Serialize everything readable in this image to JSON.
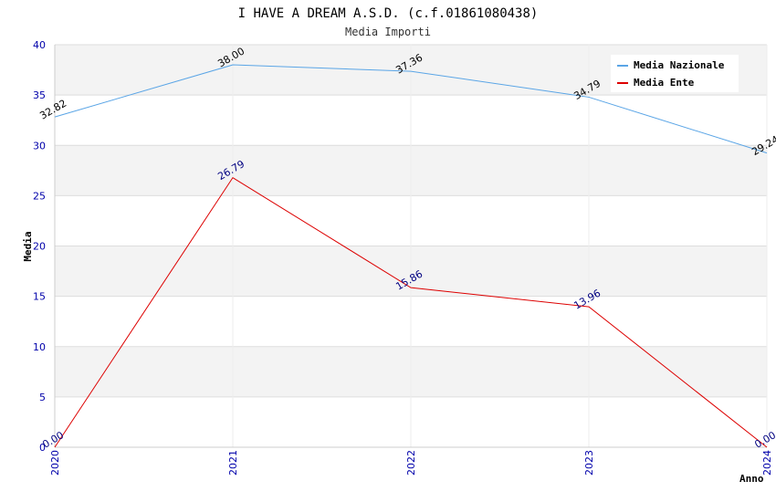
{
  "chart_data": {
    "type": "line",
    "title": "I HAVE A DREAM A.S.D. (c.f.01861080438)",
    "subtitle": "Media Importi",
    "xlabel": "Anno",
    "ylabel": "Media",
    "ylim": [
      0,
      40
    ],
    "yticks": [
      "0",
      "5",
      "10",
      "15",
      "20",
      "25",
      "30",
      "35",
      "40"
    ],
    "categories": [
      "2020",
      "2021",
      "2022",
      "2023",
      "2024"
    ],
    "grid": true,
    "legend_position": "top-right",
    "series": [
      {
        "name": "Media Nazionale",
        "color": "#5aa5e6",
        "label_color": "#000000",
        "values": [
          32.82,
          38.0,
          37.36,
          34.79,
          29.24
        ],
        "labels": [
          "32.82",
          "38.00",
          "37.36",
          "34.79",
          "29.24"
        ]
      },
      {
        "name": "Media Ente",
        "color": "#dd0000",
        "label_color": "#000080",
        "values": [
          0.0,
          26.79,
          15.86,
          13.96,
          0.0
        ],
        "labels": [
          "0.00",
          "26.79",
          "15.86",
          "13.96",
          "0.00"
        ]
      }
    ]
  }
}
